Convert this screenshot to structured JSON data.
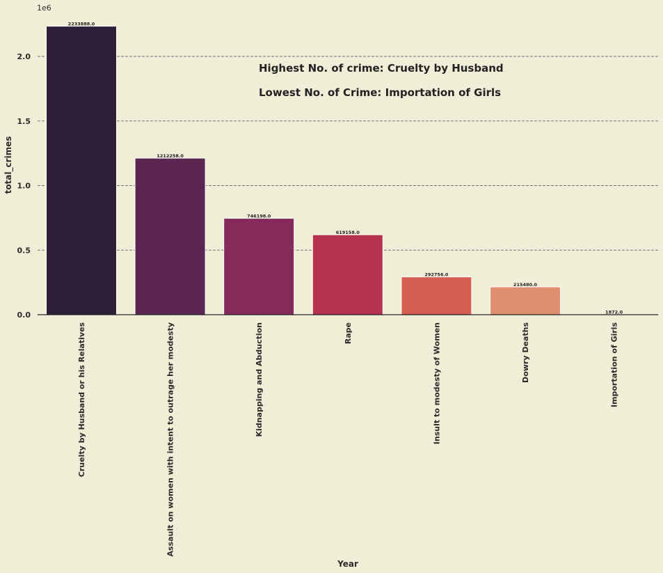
{
  "chart_data": {
    "type": "bar",
    "title": "",
    "xlabel": "Year",
    "ylabel": "total_crimes",
    "y_scale_label": "1e6",
    "ylim": [
      0,
      2300000
    ],
    "y_ticks": [
      {
        "value": 0,
        "label": "0.0"
      },
      {
        "value": 500000,
        "label": "0.5"
      },
      {
        "value": 1000000,
        "label": "1.0"
      },
      {
        "value": 1500000,
        "label": "1.5"
      },
      {
        "value": 2000000,
        "label": "2.0"
      }
    ],
    "grid": "horizontal dashed",
    "categories": [
      "Cruelty by Husband or his Relatives",
      "Assault on women with intent to outrage her modesty",
      "Kidnapping and Abduction",
      "Rape",
      "Insult to modesty of Women",
      "Dowry Deaths",
      "Importation of Girls"
    ],
    "values": [
      2233888,
      1212258,
      746198,
      619158,
      292756,
      215480,
      1872
    ],
    "value_labels": [
      "2233888.0",
      "1212258.0",
      "746198.0",
      "619158.0",
      "292756.0",
      "215480.0",
      "1872.0"
    ],
    "colors": [
      "#2e1e37",
      "#5b2750",
      "#852a5a",
      "#b6324f",
      "#d65f52",
      "#e09070",
      "#f0c7a4"
    ],
    "annotations": [
      "Highest No. of crime: Cruelty by Husband",
      "Lowest No. of Crime: Importation of Girls"
    ]
  }
}
